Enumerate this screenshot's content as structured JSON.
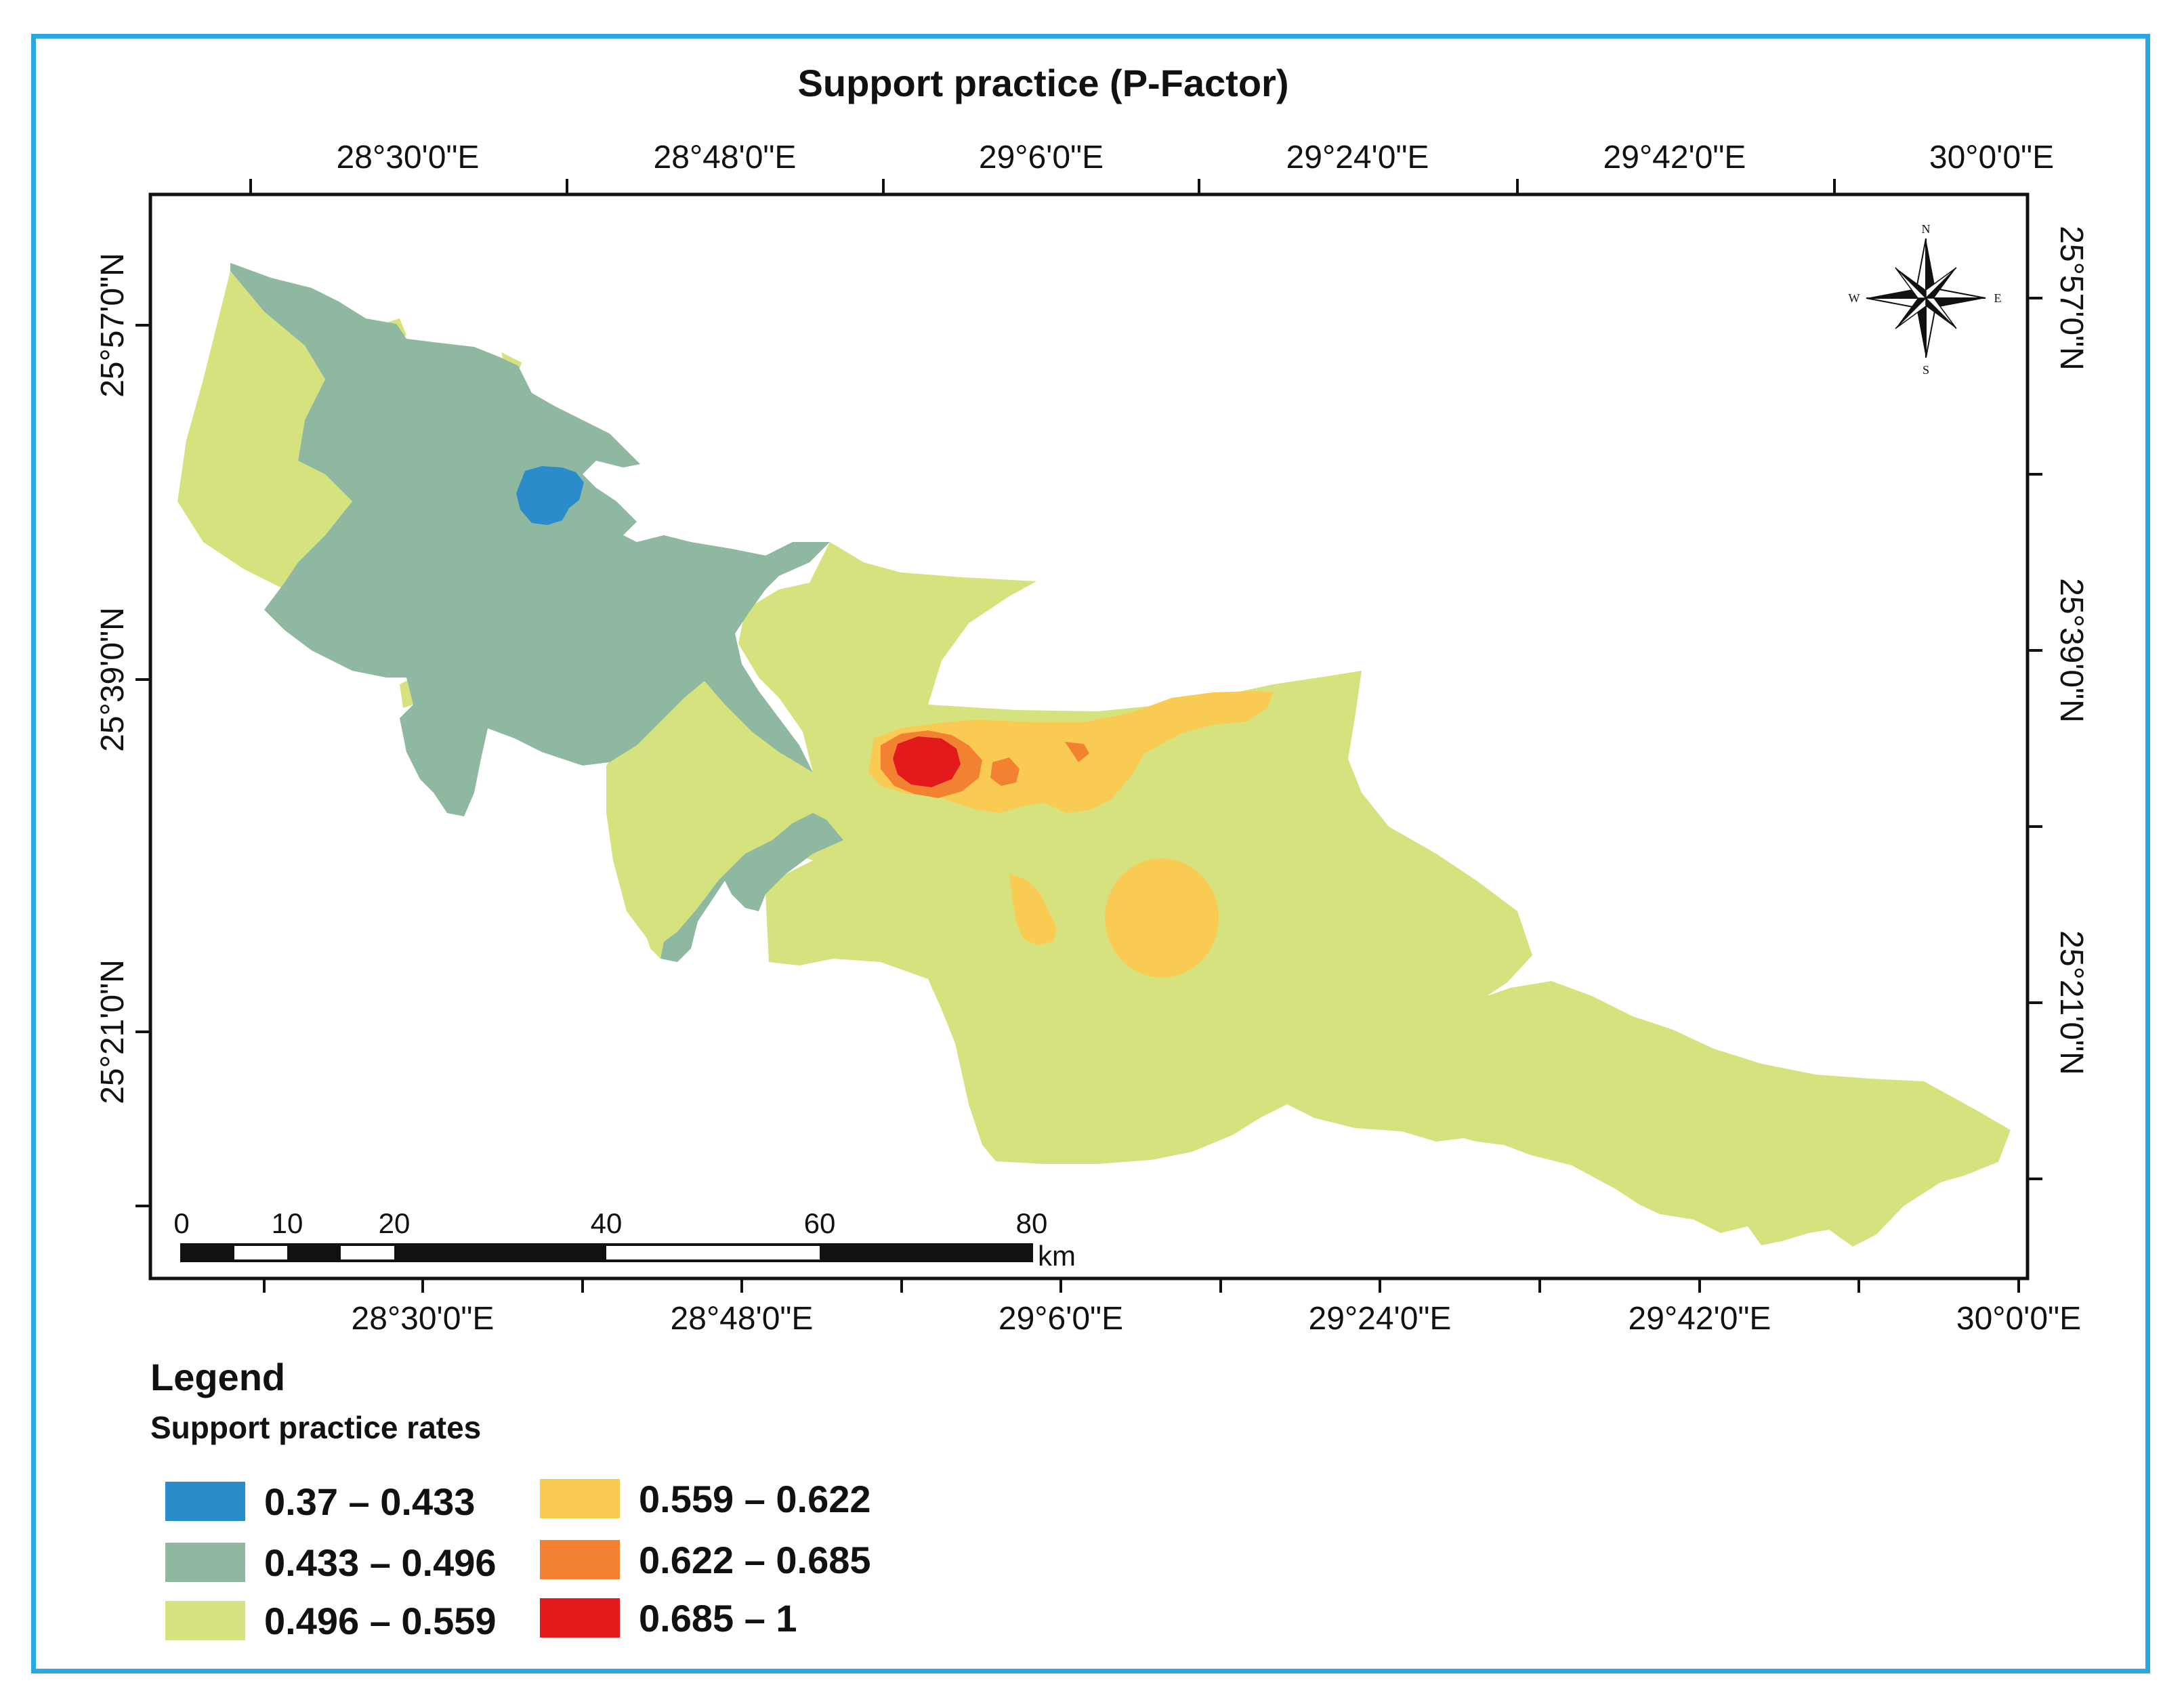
{
  "title": "Support practice (P-Factor)",
  "map": {
    "top_lon_labels": [
      "28°30'0\"E",
      "28°48'0\"E",
      "29°6'0\"E",
      "29°24'0\"E",
      "29°42'0\"E",
      "30°0'0\"E"
    ],
    "bottom_lon_labels": [
      "28°30'0\"E",
      "28°48'0\"E",
      "29°6'0\"E",
      "29°24'0\"E",
      "29°42'0\"E",
      "30°0'0\"E"
    ],
    "left_lat_labels": [
      "25°57'0\"N",
      "25°39'0\"N",
      "25°21'0\"N"
    ],
    "right_lat_labels": [
      "25°57'0\"N",
      "25°39'0\"N",
      "25°21'0\"N"
    ]
  },
  "scale_bar": {
    "ticks": [
      "0",
      "10",
      "20",
      "40",
      "60",
      "80"
    ],
    "unit": "km"
  },
  "compass": {
    "n": "N",
    "s": "S",
    "e": "E",
    "w": "W"
  },
  "legend": {
    "title": "Legend",
    "subtitle": "Support practice rates",
    "classes": [
      {
        "label": "0.37 – 0.433",
        "color": "#2b8ccc"
      },
      {
        "label": "0.433 – 0.496",
        "color": "#8fb8a0"
      },
      {
        "label": "0.496 – 0.559",
        "color": "#d6e27d"
      },
      {
        "label": "0.559 – 0.622",
        "color": "#f9cb53"
      },
      {
        "label": "0.622 – 0.685",
        "color": "#f28232"
      },
      {
        "label": "0.685 – 1",
        "color": "#e31a1c"
      }
    ]
  }
}
